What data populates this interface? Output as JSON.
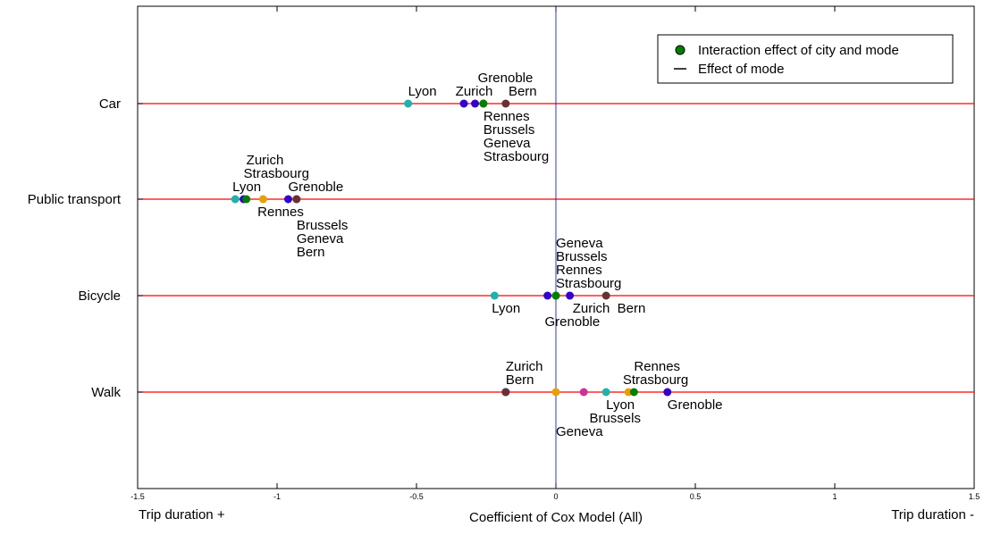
{
  "chart_data": {
    "type": "scatter",
    "title": "",
    "xlabel": "Coefficient of Cox Model (All)",
    "x_left_note": "Trip duration +",
    "x_right_note": "Trip duration -",
    "xlim": [
      -1.5,
      1.5
    ],
    "x_ticks": [
      {
        "value": -1.5,
        "label": "-1.5"
      },
      {
        "value": -1,
        "label": "-1"
      },
      {
        "value": -0.5,
        "label": "-0.5"
      },
      {
        "value": 0,
        "label": "0"
      },
      {
        "value": 0.5,
        "label": "0.5"
      },
      {
        "value": 1,
        "label": "1"
      },
      {
        "value": 1.5,
        "label": "1.5"
      }
    ],
    "categories": [
      "Car",
      "Public transport",
      "Bicycle",
      "Walk"
    ],
    "mode_effect_line_x": 0,
    "legend": {
      "position": "top-right",
      "entries": [
        {
          "label": "Interaction effect of city and mode",
          "marker": "dot",
          "color": "#008000"
        },
        {
          "label": "Effect of mode",
          "marker": "line",
          "color": "#000000"
        }
      ]
    },
    "colors": {
      "mode_line": "#ff0000",
      "zero_line": "#0000cc",
      "Lyon": "#20b2aa",
      "Zurich": "#3300cc",
      "Grenoble": "#3300cc",
      "Bern": "#663333",
      "Rennes": "#e8a000",
      "Brussels": "#cc3399",
      "Geneva": "#e8a000",
      "Strasbourg": "#008000"
    },
    "points": {
      "Car": [
        {
          "city": "Lyon",
          "x": -0.53
        },
        {
          "city": "Zurich",
          "x": -0.33
        },
        {
          "city": "Grenoble",
          "x": -0.29
        },
        {
          "city": "Rennes",
          "x": -0.26
        },
        {
          "city": "Brussels",
          "x": -0.26
        },
        {
          "city": "Geneva",
          "x": -0.26
        },
        {
          "city": "Strasbourg",
          "x": -0.26
        },
        {
          "city": "Bern",
          "x": -0.18
        }
      ],
      "Public transport": [
        {
          "city": "Lyon",
          "x": -1.15
        },
        {
          "city": "Zurich",
          "x": -1.12
        },
        {
          "city": "Strasbourg",
          "x": -1.11
        },
        {
          "city": "Rennes",
          "x": -1.05
        },
        {
          "city": "Grenoble",
          "x": -0.96
        },
        {
          "city": "Brussels",
          "x": -0.93
        },
        {
          "city": "Geneva",
          "x": -0.93
        },
        {
          "city": "Bern",
          "x": -0.93
        }
      ],
      "Bicycle": [
        {
          "city": "Lyon",
          "x": -0.22
        },
        {
          "city": "Grenoble",
          "x": -0.03
        },
        {
          "city": "Geneva",
          "x": 0.0
        },
        {
          "city": "Brussels",
          "x": 0.0
        },
        {
          "city": "Rennes",
          "x": 0.0
        },
        {
          "city": "Strasbourg",
          "x": 0.0
        },
        {
          "city": "Zurich",
          "x": 0.05
        },
        {
          "city": "Bern",
          "x": 0.18
        }
      ],
      "Walk": [
        {
          "city": "Zurich",
          "x": -0.18
        },
        {
          "city": "Bern",
          "x": -0.18
        },
        {
          "city": "Geneva",
          "x": 0.0
        },
        {
          "city": "Brussels",
          "x": 0.1
        },
        {
          "city": "Lyon",
          "x": 0.18
        },
        {
          "city": "Rennes",
          "x": 0.26
        },
        {
          "city": "Strasbourg",
          "x": 0.28
        },
        {
          "city": "Grenoble",
          "x": 0.4
        }
      ]
    },
    "annotations": {
      "Car": [
        {
          "text": "Lyon",
          "x": -0.53,
          "pos": "above",
          "stack": 0
        },
        {
          "text": "Zurich",
          "x": -0.36,
          "pos": "above",
          "stack": 0
        },
        {
          "text": "Grenoble",
          "x": -0.28,
          "pos": "above",
          "stack": 1
        },
        {
          "text": "Bern",
          "x": -0.17,
          "pos": "above",
          "stack": 0
        },
        {
          "text": "Rennes",
          "x": -0.26,
          "pos": "below",
          "stack": 0
        },
        {
          "text": "Brussels",
          "x": -0.26,
          "pos": "below",
          "stack": 1
        },
        {
          "text": "Geneva",
          "x": -0.26,
          "pos": "below",
          "stack": 2
        },
        {
          "text": "Strasbourg",
          "x": -0.26,
          "pos": "below",
          "stack": 3
        }
      ],
      "Public transport": [
        {
          "text": "Lyon",
          "x": -1.16,
          "pos": "above",
          "stack": 0
        },
        {
          "text": "Strasbourg",
          "x": -1.12,
          "pos": "above",
          "stack": 1
        },
        {
          "text": "Zurich",
          "x": -1.11,
          "pos": "above",
          "stack": 2
        },
        {
          "text": "Grenoble",
          "x": -0.96,
          "pos": "above",
          "stack": 0
        },
        {
          "text": "Rennes",
          "x": -1.07,
          "pos": "below",
          "stack": 0
        },
        {
          "text": "Brussels",
          "x": -0.93,
          "pos": "below",
          "stack": 1
        },
        {
          "text": "Geneva",
          "x": -0.93,
          "pos": "below",
          "stack": 2
        },
        {
          "text": "Bern",
          "x": -0.93,
          "pos": "below",
          "stack": 3
        }
      ],
      "Bicycle": [
        {
          "text": "Strasbourg",
          "x": 0.0,
          "pos": "above",
          "stack": 0
        },
        {
          "text": "Rennes",
          "x": 0.0,
          "pos": "above",
          "stack": 1
        },
        {
          "text": "Brussels",
          "x": 0.0,
          "pos": "above",
          "stack": 2
        },
        {
          "text": "Geneva",
          "x": 0.0,
          "pos": "above",
          "stack": 3
        },
        {
          "text": "Lyon",
          "x": -0.23,
          "pos": "below",
          "stack": 0
        },
        {
          "text": "Zurich",
          "x": 0.06,
          "pos": "below",
          "stack": 0
        },
        {
          "text": "Bern",
          "x": 0.22,
          "pos": "below",
          "stack": 0
        },
        {
          "text": "Grenoble",
          "x": -0.04,
          "pos": "below",
          "stack": 1
        }
      ],
      "Walk": [
        {
          "text": "Bern",
          "x": -0.18,
          "pos": "above",
          "stack": 0
        },
        {
          "text": "Zurich",
          "x": -0.18,
          "pos": "above",
          "stack": 1
        },
        {
          "text": "Strasbourg",
          "x": 0.24,
          "pos": "above",
          "stack": 0
        },
        {
          "text": "Rennes",
          "x": 0.28,
          "pos": "above",
          "stack": 1
        },
        {
          "text": "Lyon",
          "x": 0.18,
          "pos": "below",
          "stack": 0
        },
        {
          "text": "Grenoble",
          "x": 0.4,
          "pos": "below",
          "stack": 0
        },
        {
          "text": "Brussels",
          "x": 0.12,
          "pos": "below",
          "stack": 1
        },
        {
          "text": "Geneva",
          "x": 0.0,
          "pos": "below",
          "stack": 2
        }
      ]
    }
  }
}
